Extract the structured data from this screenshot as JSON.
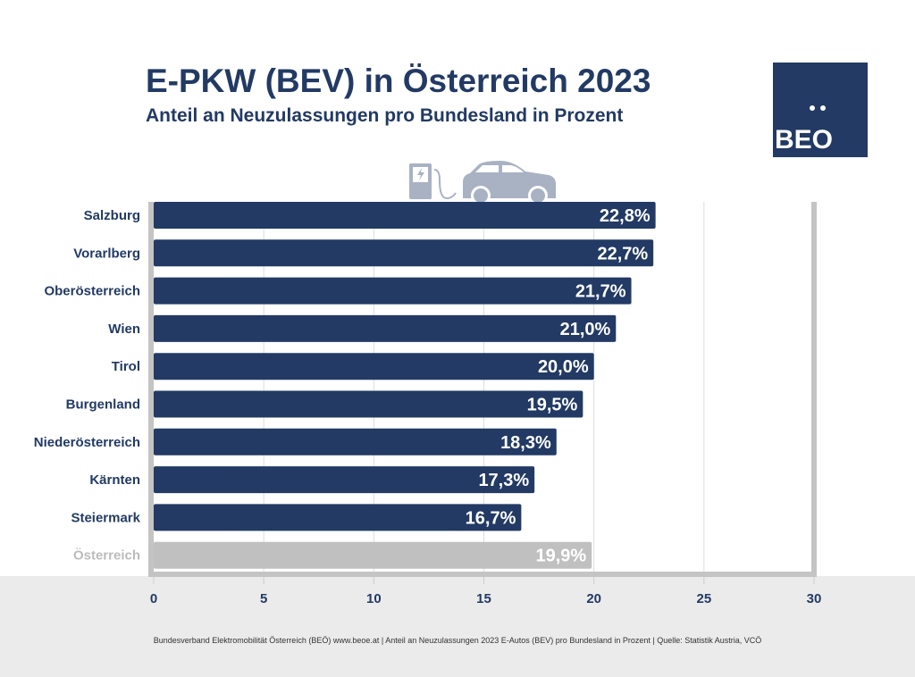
{
  "header": {
    "title": "E-PKW (BEV) in Österreich 2023",
    "subtitle": "Anteil an Neuzulassungen pro Bundesland in Prozent"
  },
  "logo": {
    "text": "BEO"
  },
  "footer": "Bundesverband Elektromobilität Österreich (BEÖ) www.beoe.at | Anteil an Neuzulassungen 2023 E-Autos (BEV) pro Bundesland in Prozent | Quelle: Statistik Austria, VCÖ",
  "chart_data": {
    "type": "bar",
    "orientation": "horizontal",
    "categories": [
      "Salzburg",
      "Vorarlberg",
      "Oberösterreich",
      "Wien",
      "Tirol",
      "Burgenland",
      "Niederösterreich",
      "Kärnten",
      "Steiermark",
      "Österreich"
    ],
    "values": [
      22.8,
      22.7,
      21.7,
      21.0,
      20.0,
      19.5,
      18.3,
      17.3,
      16.7,
      19.9
    ],
    "data_labels": [
      "22,8%",
      "22,7%",
      "21,7%",
      "21,0%",
      "20,0%",
      "19,5%",
      "18,3%",
      "17,3%",
      "16,7%",
      "19,9%"
    ],
    "xlim": [
      0,
      30
    ],
    "xticks": [
      0,
      5,
      10,
      15,
      20,
      25,
      30
    ],
    "grid": true,
    "colors": {
      "bar": "#223a64",
      "total_bar": "#c0c0c0",
      "total_label": "#bbbbbb",
      "text": "#223a64"
    }
  }
}
